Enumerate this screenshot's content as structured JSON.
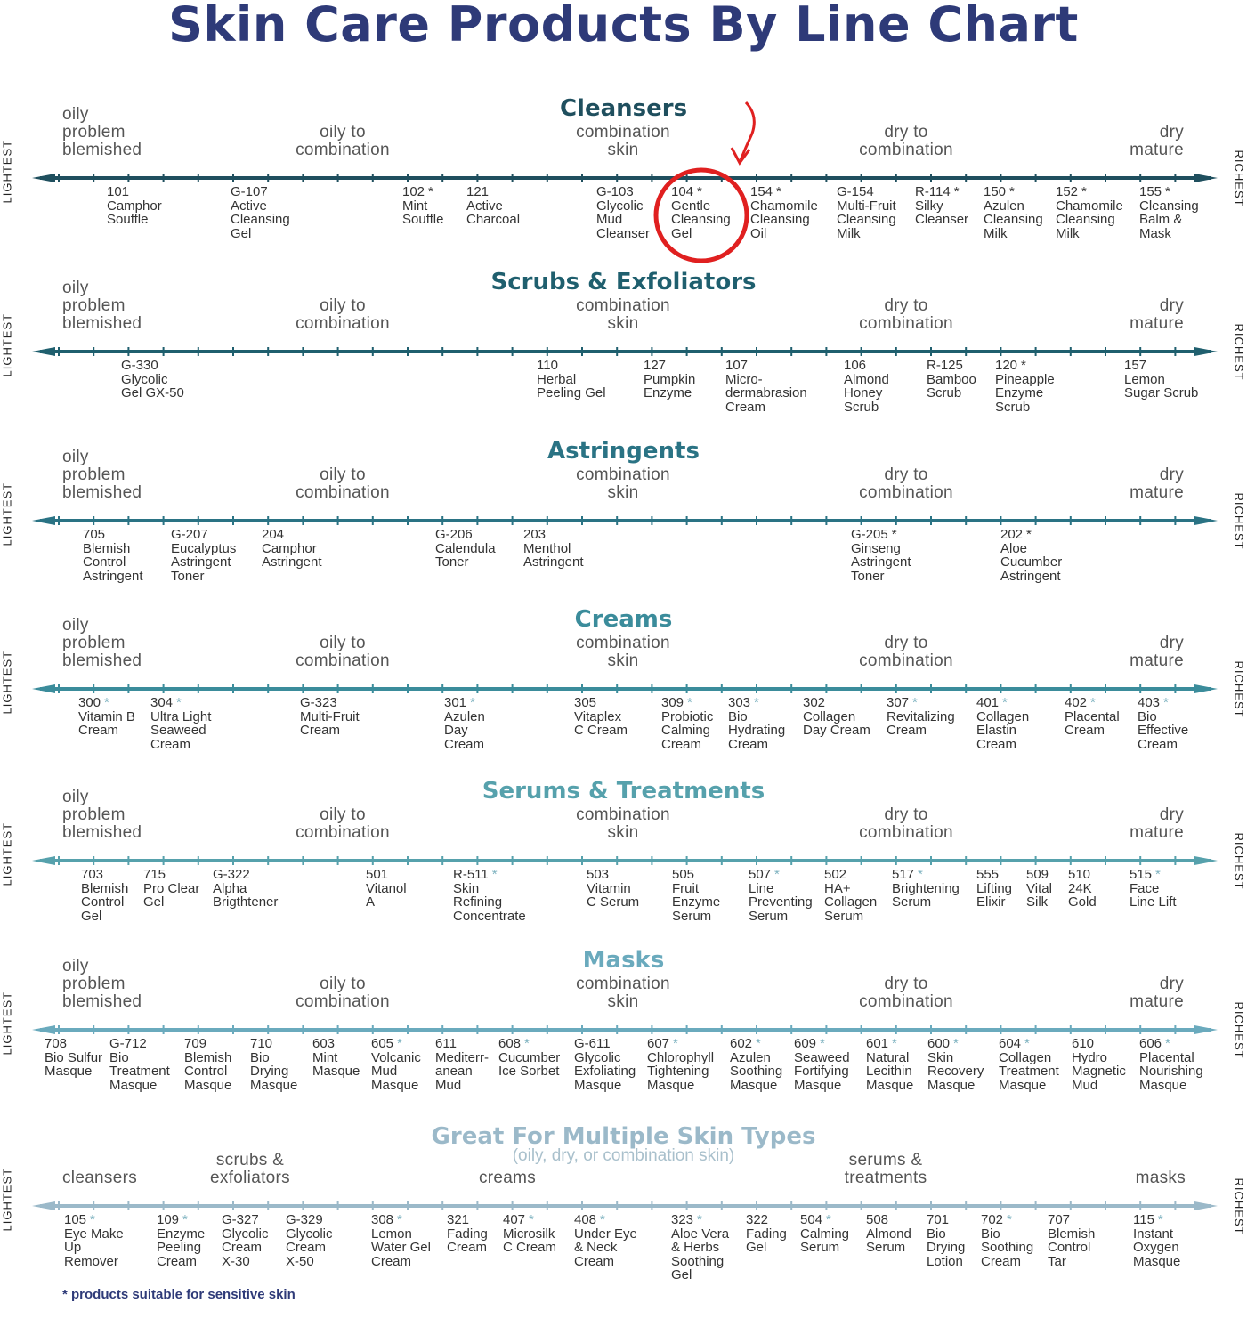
{
  "title": "Skin Care Products By Line Chart",
  "footnote": "* products suitable for sensitive skin",
  "axis_ends": {
    "left": "LIGHTEST",
    "right": "RICHEST"
  },
  "highlight": {
    "product": "104",
    "color": "#e02020",
    "shape": "circle-with-arrow"
  },
  "chart_data": {
    "type": "line",
    "axis": "product richness, lightest to richest",
    "sections": [
      {
        "title": "Cleansers",
        "color": "#1f4f5e",
        "skin_labels": [
          "oily\nproblem\nblemished",
          "oily to\ncombination",
          "combination\nskin",
          "dry to\ncombination",
          "dry\nmature"
        ],
        "products": [
          {
            "code": "101",
            "sensitive": false,
            "name": [
              "Camphor",
              "Souffle"
            ]
          },
          {
            "code": "G-107",
            "sensitive": false,
            "name": [
              "Active",
              "Cleansing",
              "Gel"
            ]
          },
          {
            "code": "102",
            "sensitive": true,
            "name": [
              "Mint",
              "Souffle"
            ]
          },
          {
            "code": "121",
            "sensitive": false,
            "name": [
              "Active",
              "Charcoal"
            ]
          },
          {
            "code": "G-103",
            "sensitive": false,
            "name": [
              "Glycolic",
              "Mud",
              "Cleanser"
            ]
          },
          {
            "code": "104",
            "sensitive": true,
            "name": [
              "Gentle",
              "Cleansing",
              "Gel"
            ]
          },
          {
            "code": "154",
            "sensitive": true,
            "name": [
              "Chamomile",
              "Cleansing",
              "Oil"
            ]
          },
          {
            "code": "G-154",
            "sensitive": false,
            "name": [
              "Multi-Fruit",
              "Cleansing",
              "Milk"
            ]
          },
          {
            "code": "R-114",
            "sensitive": true,
            "name": [
              "Silky",
              "Cleanser"
            ]
          },
          {
            "code": "150",
            "sensitive": true,
            "name": [
              "Azulen",
              "Cleansing",
              "Milk"
            ]
          },
          {
            "code": "152",
            "sensitive": true,
            "name": [
              "Chamomile",
              "Cleansing",
              "Milk"
            ]
          },
          {
            "code": "155",
            "sensitive": true,
            "name": [
              "Cleansing",
              "Balm &",
              "Mask"
            ]
          }
        ]
      },
      {
        "title": "Scrubs & Exfoliators",
        "color": "#1f5f6e",
        "skin_labels": [
          "oily\nproblem\nblemished",
          "oily to\ncombination",
          "combination\nskin",
          "dry to\ncombination",
          "dry\nmature"
        ],
        "products": [
          {
            "code": "G-330",
            "sensitive": false,
            "name": [
              "Glycolic",
              "Gel GX-50"
            ]
          },
          {
            "code": "110",
            "sensitive": false,
            "name": [
              "Herbal",
              "Peeling Gel"
            ]
          },
          {
            "code": "127",
            "sensitive": false,
            "name": [
              "Pumpkin",
              "Enzyme"
            ]
          },
          {
            "code": "107",
            "sensitive": false,
            "name": [
              "Micro-",
              "dermabrasion",
              "Cream"
            ]
          },
          {
            "code": "106",
            "sensitive": false,
            "name": [
              "Almond",
              "Honey",
              "Scrub"
            ]
          },
          {
            "code": "R-125",
            "sensitive": false,
            "name": [
              "Bamboo",
              "Scrub"
            ]
          },
          {
            "code": "120",
            "sensitive": true,
            "name": [
              "Pineapple",
              "Enzyme",
              "Scrub"
            ]
          },
          {
            "code": "157",
            "sensitive": false,
            "name": [
              "Lemon",
              "Sugar Scrub"
            ]
          }
        ]
      },
      {
        "title": "Astringents",
        "color": "#2a7384",
        "skin_labels": [
          "oily\nproblem\nblemished",
          "oily to\ncombination",
          "combination\nskin",
          "dry to\ncombination",
          "dry\nmature"
        ],
        "products": [
          {
            "code": "705",
            "sensitive": false,
            "name": [
              "Blemish",
              "Control",
              "Astringent"
            ]
          },
          {
            "code": "G-207",
            "sensitive": false,
            "name": [
              "Eucalyptus",
              "Astringent",
              "Toner"
            ]
          },
          {
            "code": "204",
            "sensitive": false,
            "name": [
              "Camphor",
              "Astringent"
            ]
          },
          {
            "code": "G-206",
            "sensitive": false,
            "name": [
              "Calendula",
              "Toner"
            ]
          },
          {
            "code": "203",
            "sensitive": false,
            "name": [
              "Menthol",
              "Astringent"
            ]
          },
          {
            "code": "G-205",
            "sensitive": true,
            "name": [
              "Ginseng",
              "Astringent",
              "Toner"
            ]
          },
          {
            "code": "202",
            "sensitive": true,
            "name": [
              "Aloe",
              "Cucumber",
              "Astringent"
            ]
          }
        ]
      },
      {
        "title": "Creams",
        "color": "#3b8c9b",
        "skin_labels": [
          "oily\nproblem\nblemished",
          "oily to\ncombination",
          "combination\nskin",
          "dry to\ncombination",
          "dry\nmature"
        ],
        "products": [
          {
            "code": "300",
            "sensitive": true,
            "name": [
              "Vitamin B",
              "Cream"
            ]
          },
          {
            "code": "304",
            "sensitive": true,
            "name": [
              "Ultra Light",
              "Seaweed",
              "Cream"
            ]
          },
          {
            "code": "G-323",
            "sensitive": false,
            "name": [
              "Multi-Fruit",
              "Cream"
            ]
          },
          {
            "code": "301",
            "sensitive": true,
            "name": [
              "Azulen",
              "Day",
              "Cream"
            ]
          },
          {
            "code": "305",
            "sensitive": false,
            "name": [
              "Vitaplex",
              "C Cream"
            ]
          },
          {
            "code": "309",
            "sensitive": true,
            "name": [
              "Probiotic",
              "Calming",
              "Cream"
            ]
          },
          {
            "code": "303",
            "sensitive": true,
            "name": [
              "Bio",
              "Hydrating",
              "Cream"
            ]
          },
          {
            "code": "302",
            "sensitive": false,
            "name": [
              "Collagen",
              "Day Cream"
            ]
          },
          {
            "code": "307",
            "sensitive": true,
            "name": [
              "Revitalizing",
              "Cream"
            ]
          },
          {
            "code": "401",
            "sensitive": true,
            "name": [
              "Collagen",
              "Elastin",
              "Cream"
            ]
          },
          {
            "code": "402",
            "sensitive": true,
            "name": [
              "Placental",
              "Cream"
            ]
          },
          {
            "code": "403",
            "sensitive": true,
            "name": [
              "Bio",
              "Effective",
              "Cream"
            ]
          }
        ]
      },
      {
        "title": "Serums & Treatments",
        "color": "#56a1ac",
        "skin_labels": [
          "oily\nproblem\nblemished",
          "oily to\ncombination",
          "combination\nskin",
          "dry to\ncombination",
          "dry\nmature"
        ],
        "products": [
          {
            "code": "703",
            "sensitive": false,
            "name": [
              "Blemish",
              "Control",
              "Gel"
            ]
          },
          {
            "code": "715",
            "sensitive": false,
            "name": [
              "Pro Clear",
              "Gel"
            ]
          },
          {
            "code": "G-322",
            "sensitive": false,
            "name": [
              "Alpha",
              "Brigthtener"
            ]
          },
          {
            "code": "501",
            "sensitive": false,
            "name": [
              "Vitanol",
              "A"
            ]
          },
          {
            "code": "R-511",
            "sensitive": true,
            "name": [
              "Skin",
              "Refining",
              "Concentrate"
            ]
          },
          {
            "code": "503",
            "sensitive": false,
            "name": [
              "Vitamin",
              "C Serum"
            ]
          },
          {
            "code": "505",
            "sensitive": false,
            "name": [
              "Fruit",
              "Enzyme",
              "Serum"
            ]
          },
          {
            "code": "507",
            "sensitive": true,
            "name": [
              "Line",
              "Preventing",
              "Serum"
            ]
          },
          {
            "code": "502",
            "sensitive": false,
            "name": [
              "HA+",
              "Collagen",
              "Serum"
            ]
          },
          {
            "code": "517",
            "sensitive": true,
            "name": [
              "Brightening",
              "Serum"
            ]
          },
          {
            "code": "555",
            "sensitive": false,
            "name": [
              "Lifting",
              "Elixir"
            ]
          },
          {
            "code": "509",
            "sensitive": false,
            "name": [
              "Vital",
              "Silk"
            ]
          },
          {
            "code": "510",
            "sensitive": false,
            "name": [
              "24K",
              "Gold"
            ]
          },
          {
            "code": "515",
            "sensitive": true,
            "name": [
              "Face",
              "Line Lift"
            ]
          }
        ]
      },
      {
        "title": "Masks",
        "color": "#6aaabd",
        "skin_labels": [
          "oily\nproblem\nblemished",
          "oily to\ncombination",
          "combination\nskin",
          "dry to\ncombination",
          "dry\nmature"
        ],
        "products": [
          {
            "code": "708",
            "sensitive": false,
            "name": [
              "Bio Sulfur",
              "Masque"
            ]
          },
          {
            "code": "G-712",
            "sensitive": false,
            "name": [
              "Bio",
              "Treatment",
              "Masque"
            ]
          },
          {
            "code": "709",
            "sensitive": false,
            "name": [
              "Blemish",
              "Control",
              "Masque"
            ]
          },
          {
            "code": "710",
            "sensitive": false,
            "name": [
              "Bio",
              "Drying",
              "Masque"
            ]
          },
          {
            "code": "603",
            "sensitive": false,
            "name": [
              "Mint",
              "Masque"
            ]
          },
          {
            "code": "605",
            "sensitive": true,
            "name": [
              "Volcanic",
              "Mud",
              "Masque"
            ]
          },
          {
            "code": "611",
            "sensitive": false,
            "name": [
              "Mediterr-",
              "anean",
              "Mud"
            ]
          },
          {
            "code": "608",
            "sensitive": true,
            "name": [
              "Cucumber",
              "Ice Sorbet"
            ]
          },
          {
            "code": "G-611",
            "sensitive": false,
            "name": [
              "Glycolic",
              "Exfoliating",
              "Masque"
            ]
          },
          {
            "code": "607",
            "sensitive": true,
            "name": [
              "Chlorophyll",
              "Tightening",
              "Masque"
            ]
          },
          {
            "code": "602",
            "sensitive": true,
            "name": [
              "Azulen",
              "Soothing",
              "Masque"
            ]
          },
          {
            "code": "609",
            "sensitive": true,
            "name": [
              "Seaweed",
              "Fortifying",
              "Masque"
            ]
          },
          {
            "code": "601",
            "sensitive": true,
            "name": [
              "Natural",
              "Lecithin",
              "Masque"
            ]
          },
          {
            "code": "600",
            "sensitive": true,
            "name": [
              "Skin",
              "Recovery",
              "Masque"
            ]
          },
          {
            "code": "604",
            "sensitive": true,
            "name": [
              "Collagen",
              "Treatment",
              "Masque"
            ]
          },
          {
            "code": "610",
            "sensitive": false,
            "name": [
              "Hydro",
              "Magnetic",
              "Mud"
            ]
          },
          {
            "code": "606",
            "sensitive": true,
            "name": [
              "Placental",
              "Nourishing",
              "Masque"
            ]
          }
        ]
      },
      {
        "title": "Great For Multiple Skin Types",
        "subtitle": "(oily, dry, or combination skin)",
        "color": "#9bb9c9",
        "skin_labels": [
          "cleansers",
          "scrubs &\nexfoliators",
          "creams",
          "serums &\ntreatments",
          "masks"
        ],
        "products": [
          {
            "code": "105",
            "sensitive": true,
            "name": [
              "Eye Make",
              "Up",
              "Remover"
            ]
          },
          {
            "code": "109",
            "sensitive": true,
            "name": [
              "Enzyme",
              "Peeling",
              "Cream"
            ]
          },
          {
            "code": "G-327",
            "sensitive": false,
            "name": [
              "Glycolic",
              "Cream",
              "X-30"
            ]
          },
          {
            "code": "G-329",
            "sensitive": false,
            "name": [
              "Glycolic",
              "Cream",
              "X-50"
            ]
          },
          {
            "code": "308",
            "sensitive": true,
            "name": [
              "Lemon",
              "Water Gel",
              "Cream"
            ]
          },
          {
            "code": "321",
            "sensitive": false,
            "name": [
              "Fading",
              "Cream"
            ]
          },
          {
            "code": "407",
            "sensitive": true,
            "name": [
              "Microsilk",
              "C Cream"
            ]
          },
          {
            "code": "408",
            "sensitive": true,
            "name": [
              "Under Eye",
              "& Neck",
              "Cream"
            ]
          },
          {
            "code": "323",
            "sensitive": true,
            "name": [
              "Aloe Vera",
              "& Herbs",
              "Soothing",
              "Gel"
            ]
          },
          {
            "code": "322",
            "sensitive": false,
            "name": [
              "Fading",
              "Gel"
            ]
          },
          {
            "code": "504",
            "sensitive": true,
            "name": [
              "Calming",
              "Serum"
            ]
          },
          {
            "code": "508",
            "sensitive": false,
            "name": [
              "Almond",
              "Serum"
            ]
          },
          {
            "code": "701",
            "sensitive": false,
            "name": [
              "Bio",
              "Drying",
              "Lotion"
            ]
          },
          {
            "code": "702",
            "sensitive": true,
            "name": [
              "Bio",
              "Soothing",
              "Cream"
            ]
          },
          {
            "code": "707",
            "sensitive": false,
            "name": [
              "Blemish",
              "Control",
              "Tar"
            ]
          },
          {
            "code": "115",
            "sensitive": true,
            "name": [
              "Instant",
              "Oxygen",
              "Masque"
            ]
          }
        ]
      }
    ]
  }
}
